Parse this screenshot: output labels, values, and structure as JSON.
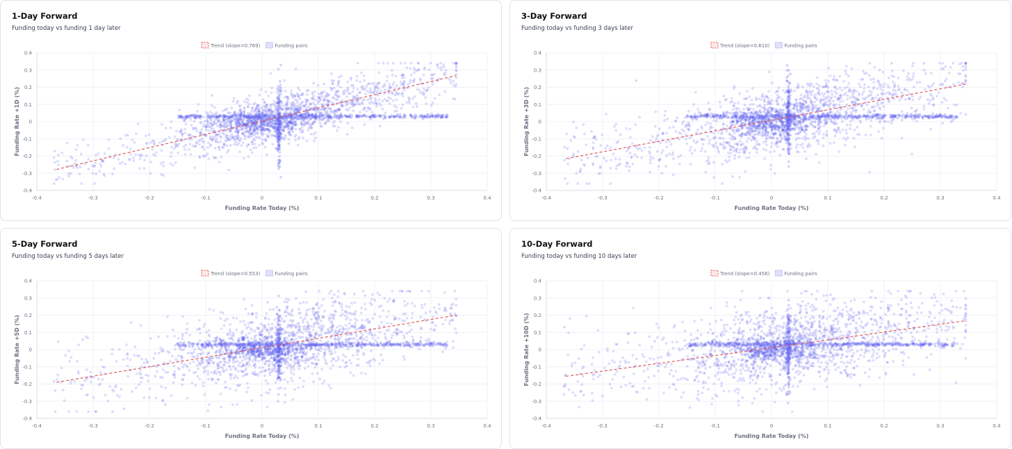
{
  "chart_data": [
    {
      "type": "scatter",
      "title": "1-Day Forward",
      "subtitle": "Funding today vs funding 1 day later",
      "xlabel": "Funding Rate Today (%)",
      "ylabel": "Funding Rate +1D (%)",
      "xlim": [
        -0.4,
        0.4
      ],
      "ylim": [
        -0.4,
        0.4
      ],
      "xticks": [
        "-0.4",
        "-0.3",
        "-0.2",
        "-0.1",
        "0",
        "0.1",
        "0.2",
        "0.3",
        "0.4"
      ],
      "yticks": [
        "0.4",
        "0.3",
        "0.2",
        "0.1",
        "0",
        "-0.1",
        "-0.2",
        "-0.3",
        "-0.4"
      ],
      "grid": true,
      "legend_position": "top-center",
      "series": [
        {
          "name": "Trend (slope=0.769)",
          "kind": "line",
          "style": "dashed",
          "color": "#e05a5a",
          "x": [
            -0.365,
            0.345
          ],
          "y": [
            -0.278,
            0.268
          ]
        },
        {
          "name": "Funding pairs",
          "kind": "scatter",
          "color": "#6366f1",
          "x": [
            -0.36,
            -0.33,
            -0.3,
            -0.27,
            -0.25,
            -0.22,
            -0.2,
            -0.18,
            -0.15,
            -0.13,
            -0.1,
            -0.08,
            -0.06,
            -0.04,
            -0.02,
            0.0,
            0.02,
            0.03,
            0.03,
            0.03,
            0.05,
            0.07,
            0.1,
            0.12,
            0.15,
            0.18,
            0.2,
            0.22,
            0.25,
            0.28,
            0.3,
            0.32,
            0.34
          ],
          "y": [
            -0.25,
            -0.22,
            -0.2,
            -0.18,
            -0.15,
            -0.14,
            -0.12,
            -0.1,
            -0.08,
            -0.05,
            -0.06,
            -0.03,
            0.01,
            0.02,
            0.03,
            0.02,
            -0.05,
            0.03,
            -0.2,
            0.1,
            0.06,
            0.08,
            0.1,
            0.12,
            0.15,
            0.14,
            0.18,
            0.21,
            0.2,
            0.25,
            0.22,
            0.27,
            0.25
          ]
        }
      ]
    },
    {
      "type": "scatter",
      "title": "3-Day Forward",
      "subtitle": "Funding today vs funding 3 days later",
      "xlabel": "Funding Rate Today (%)",
      "ylabel": "Funding Rate +3D (%)",
      "xlim": [
        -0.4,
        0.4
      ],
      "ylim": [
        -0.4,
        0.4
      ],
      "xticks": [
        "-0.4",
        "-0.3",
        "-0.2",
        "-0.1",
        "0",
        "0.1",
        "0.2",
        "0.3",
        "0.4"
      ],
      "yticks": [
        "0.4",
        "0.3",
        "0.2",
        "0.1",
        "0",
        "-0.1",
        "-0.2",
        "-0.3",
        "-0.4"
      ],
      "grid": true,
      "legend_position": "top-center",
      "series": [
        {
          "name": "Trend (slope=0.610)",
          "kind": "line",
          "style": "dashed",
          "color": "#e05a5a",
          "x": [
            -0.365,
            0.345
          ],
          "y": [
            -0.215,
            0.218
          ]
        },
        {
          "name": "Funding pairs",
          "kind": "scatter",
          "color": "#6366f1",
          "x": [
            -0.36,
            -0.33,
            -0.3,
            -0.27,
            -0.25,
            -0.22,
            -0.2,
            -0.18,
            -0.15,
            -0.13,
            -0.1,
            -0.08,
            -0.06,
            -0.04,
            -0.02,
            0.0,
            0.02,
            0.03,
            0.03,
            0.03,
            0.05,
            0.07,
            0.1,
            0.12,
            0.15,
            0.18,
            0.2,
            0.22,
            0.25,
            0.28,
            0.3,
            0.32,
            0.34
          ],
          "y": [
            -0.18,
            -0.15,
            -0.12,
            0.02,
            -0.1,
            -0.08,
            0.03,
            -0.06,
            -0.02,
            -0.05,
            -0.08,
            0.02,
            -0.03,
            0.01,
            0.03,
            0.02,
            -0.04,
            0.25,
            -0.2,
            0.05,
            0.08,
            0.03,
            0.12,
            0.06,
            0.15,
            0.1,
            0.18,
            0.14,
            0.2,
            0.16,
            0.22,
            0.18,
            0.2
          ]
        }
      ]
    },
    {
      "type": "scatter",
      "title": "5-Day Forward",
      "subtitle": "Funding today vs funding 5 days later",
      "xlabel": "Funding Rate Today (%)",
      "ylabel": "Funding Rate +5D (%)",
      "xlim": [
        -0.4,
        0.4
      ],
      "ylim": [
        -0.4,
        0.4
      ],
      "xticks": [
        "-0.4",
        "-0.3",
        "-0.2",
        "-0.1",
        "0",
        "0.1",
        "0.2",
        "0.3",
        "0.4"
      ],
      "yticks": [
        "0.4",
        "0.3",
        "0.2",
        "0.1",
        "0",
        "-0.1",
        "-0.2",
        "-0.3",
        "-0.4"
      ],
      "grid": true,
      "legend_position": "top-center",
      "series": [
        {
          "name": "Trend (slope=0.553)",
          "kind": "line",
          "style": "dashed",
          "color": "#e05a5a",
          "x": [
            -0.365,
            0.345
          ],
          "y": [
            -0.19,
            0.2
          ]
        },
        {
          "name": "Funding pairs",
          "kind": "scatter",
          "color": "#6366f1",
          "x": [
            -0.36,
            -0.33,
            -0.3,
            -0.27,
            -0.25,
            -0.22,
            -0.2,
            -0.18,
            -0.15,
            -0.13,
            -0.1,
            -0.08,
            -0.06,
            -0.04,
            -0.02,
            0.0,
            0.02,
            0.03,
            0.03,
            0.03,
            0.05,
            0.07,
            0.1,
            0.12,
            0.15,
            0.18,
            0.2,
            0.22,
            0.25,
            0.28,
            0.3,
            0.32,
            0.34
          ],
          "y": [
            -0.15,
            0.03,
            -0.12,
            -0.1,
            0.02,
            -0.08,
            -0.12,
            0.03,
            -0.05,
            -0.08,
            0.02,
            -0.04,
            0.01,
            -0.02,
            0.03,
            0.02,
            -0.03,
            0.22,
            -0.25,
            0.05,
            0.03,
            0.1,
            0.06,
            0.12,
            0.08,
            0.14,
            0.1,
            0.18,
            0.12,
            0.2,
            0.15,
            0.22,
            0.18
          ]
        }
      ]
    },
    {
      "type": "scatter",
      "title": "10-Day Forward",
      "subtitle": "Funding today vs funding 10 days later",
      "xlabel": "Funding Rate Today (%)",
      "ylabel": "Funding Rate +10D (%)",
      "xlim": [
        -0.4,
        0.4
      ],
      "ylim": [
        -0.4,
        0.4
      ],
      "xticks": [
        "-0.4",
        "-0.3",
        "-0.2",
        "-0.1",
        "0",
        "0.1",
        "0.2",
        "0.3",
        "0.4"
      ],
      "yticks": [
        "0.4",
        "0.3",
        "0.2",
        "0.1",
        "0",
        "-0.1",
        "-0.2",
        "-0.3",
        "-0.4"
      ],
      "grid": true,
      "legend_position": "top-center",
      "series": [
        {
          "name": "Trend (slope=0.456)",
          "kind": "line",
          "style": "dashed",
          "color": "#e05a5a",
          "x": [
            -0.365,
            0.345
          ],
          "y": [
            -0.155,
            0.168
          ]
        },
        {
          "name": "Funding pairs",
          "kind": "scatter",
          "color": "#6366f1",
          "x": [
            -0.36,
            -0.33,
            -0.3,
            -0.27,
            -0.25,
            -0.22,
            -0.2,
            -0.18,
            -0.15,
            -0.13,
            -0.1,
            -0.08,
            -0.06,
            -0.04,
            -0.02,
            0.0,
            0.02,
            0.03,
            0.03,
            0.03,
            0.05,
            0.07,
            0.1,
            0.12,
            0.15,
            0.18,
            0.2,
            0.22,
            0.25,
            0.28,
            0.3,
            0.32,
            0.34
          ],
          "y": [
            -0.1,
            0.03,
            -0.08,
            -0.12,
            0.02,
            -0.05,
            0.03,
            -0.1,
            -0.03,
            0.02,
            -0.06,
            0.03,
            -0.02,
            0.01,
            0.03,
            0.02,
            -0.04,
            0.3,
            -0.3,
            0.05,
            0.03,
            0.08,
            0.05,
            0.1,
            0.06,
            0.12,
            0.08,
            0.15,
            0.1,
            0.18,
            0.12,
            0.2,
            0.15
          ]
        }
      ]
    }
  ]
}
